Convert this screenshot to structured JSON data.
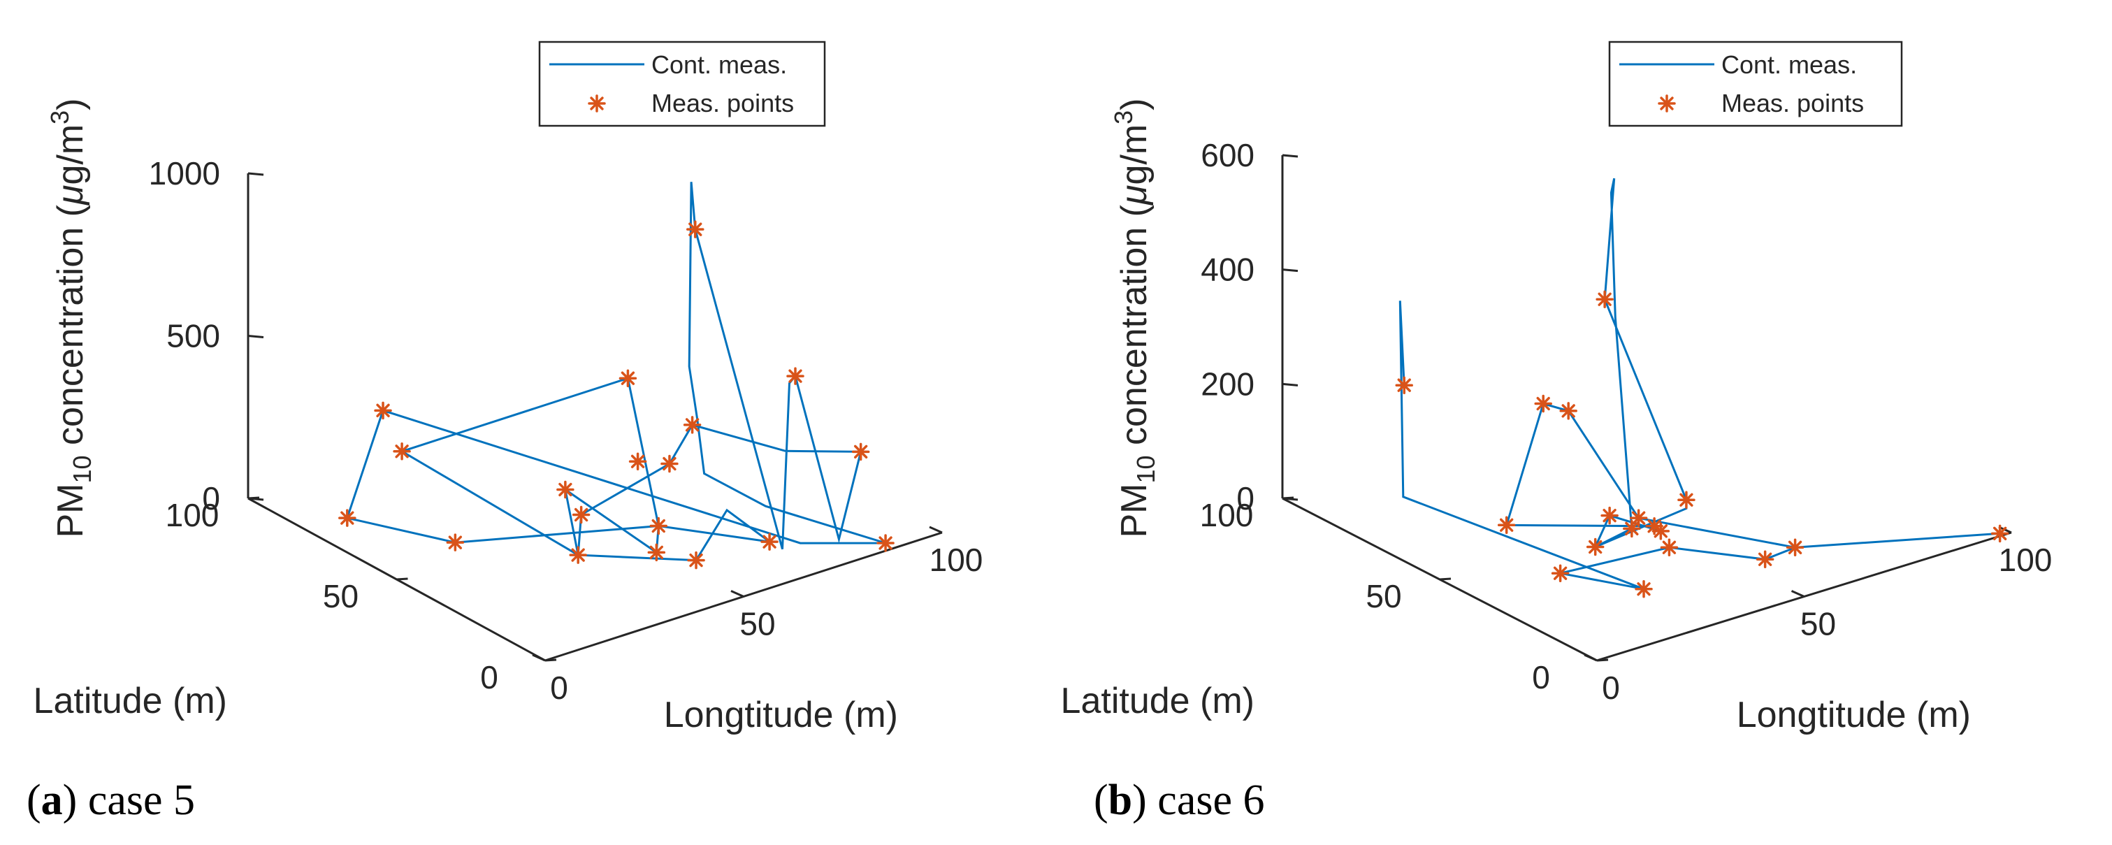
{
  "chart_data": [
    {
      "type": "line3d",
      "panel_label": "a",
      "caption": "case 5",
      "xlabel": "Longtitude (m)",
      "ylabel": "Latitude (m)",
      "zlabel_main": "PM",
      "zlabel_sub": "10",
      "zlabel_rest": " concentration (",
      "zlabel_mu": "μ",
      "zlabel_unit": "g/m",
      "zlabel_sup": "3",
      "zlabel_close": ")",
      "xlim": [
        0,
        100
      ],
      "ylim": [
        0,
        100
      ],
      "zlim": [
        0,
        1000
      ],
      "x_ticks": [
        "0",
        "50",
        "100"
      ],
      "y_ticks": [
        "0",
        "50",
        "100"
      ],
      "z_ticks": [
        "0",
        "500",
        "1000"
      ],
      "legend": {
        "line": "Cont. meas.",
        "points": "Meas. points",
        "position": "top"
      },
      "colors": {
        "line": "#0072bd",
        "points": "#d95319"
      },
      "series": [
        {
          "name": "Meas. points",
          "points": [
            [
              28,
              92,
              200
            ],
            [
              38,
              99,
              0
            ],
            [
              10,
              80,
              0
            ],
            [
              20,
              57,
              0
            ],
            [
              57,
              38,
              0
            ],
            [
              70,
              18,
              0
            ],
            [
              88,
              3,
              0
            ],
            [
              48,
              52,
              0
            ],
            [
              62,
              55,
              350
            ],
            [
              70,
              44,
              230
            ],
            [
              65,
              45,
              125
            ],
            [
              63,
              53,
              100
            ],
            [
              49,
              28,
              0
            ],
            [
              41,
              48,
              125
            ],
            [
              33,
              33,
              30
            ],
            [
              53,
              20,
              0
            ],
            [
              64,
              35,
              900
            ],
            [
              75,
              16,
              500
            ],
            [
              87,
              10,
              250
            ]
          ]
        },
        {
          "name": "Cont. meas.",
          "points": [
            [
              10,
              80,
              0
            ],
            [
              20,
              57,
              0
            ],
            [
              57,
              38,
              0
            ],
            [
              70,
              18,
              0
            ],
            [
              63,
              23,
              100
            ],
            [
              53,
              20,
              0
            ],
            [
              33,
              33,
              30
            ],
            [
              41,
              48,
              125
            ],
            [
              49,
              28,
              0
            ],
            [
              57,
              38,
              0
            ],
            [
              62,
              55,
              350
            ],
            [
              38,
              99,
              0
            ],
            [
              33,
              33,
              30
            ],
            [
              48,
              52,
              0
            ],
            [
              65,
              45,
              125
            ],
            [
              70,
              44,
              230
            ],
            [
              80,
              26,
              200
            ],
            [
              87,
              10,
              250
            ],
            [
              77,
              4,
              50
            ],
            [
              75,
              16,
              500
            ],
            [
              72,
              14,
              500
            ],
            [
              68,
              11,
              20
            ],
            [
              64,
              35,
              900
            ],
            [
              63,
              35,
              1050
            ],
            [
              61,
              33,
              500
            ],
            [
              66,
              37,
              300
            ],
            [
              70,
              40,
              100
            ],
            [
              75,
              26,
              50
            ],
            [
              88,
              3,
              0
            ],
            [
              74,
              13,
              5
            ],
            [
              28,
              92,
              200
            ],
            [
              10,
              80,
              0
            ]
          ]
        }
      ]
    },
    {
      "type": "line3d",
      "panel_label": "b",
      "caption": "case 6",
      "xlabel": "Longtitude (m)",
      "ylabel": "Latitude (m)",
      "zlabel_main": "PM",
      "zlabel_sub": "10",
      "zlabel_rest": " concentration (",
      "zlabel_mu": "μ",
      "zlabel_unit": "g/m",
      "zlabel_sup": "3",
      "zlabel_close": ")",
      "xlim": [
        0,
        100
      ],
      "ylim": [
        0,
        100
      ],
      "zlim": [
        0,
        600
      ],
      "x_ticks": [
        "0",
        "50",
        "100"
      ],
      "y_ticks": [
        "0",
        "50",
        "100"
      ],
      "z_ticks": [
        "0",
        "200",
        "400",
        "600"
      ],
      "legend": {
        "line": "Cont. meas.",
        "points": "Meas. points",
        "position": "top"
      },
      "colors": {
        "line": "#0072bd",
        "points": "#d95319"
      },
      "series": [
        {
          "name": "Meas. points",
          "points": [
            [
              18,
              85,
              200
            ],
            [
              47,
              79,
              120
            ],
            [
              47,
              71,
              130
            ],
            [
              28,
              22,
              0
            ],
            [
              20,
              38,
              0
            ],
            [
              44,
              35,
              0
            ],
            [
              55,
              19,
              0
            ],
            [
              26,
              63,
              0
            ],
            [
              48,
              45,
              0
            ],
            [
              45,
              39,
              15
            ],
            [
              41,
              50,
              20
            ],
            [
              33,
              44,
              0
            ],
            [
              48,
              50,
              0
            ],
            [
              63,
              20,
              0
            ],
            [
              38,
              39,
              35
            ],
            [
              55,
              70,
              310
            ],
            [
              58,
              48,
              15
            ],
            [
              98,
              1,
              0
            ]
          ]
        },
        {
          "name": "Cont. meas.",
          "points": [
            [
              18,
              85,
              200
            ],
            [
              17,
              85,
              350
            ],
            [
              17,
              84,
              10
            ],
            [
              28,
              22,
              0
            ],
            [
              20,
              38,
              0
            ],
            [
              44,
              35,
              0
            ],
            [
              55,
              19,
              0
            ],
            [
              63,
              20,
              0
            ],
            [
              98,
              1,
              0
            ],
            [
              63,
              20,
              0
            ],
            [
              48,
              50,
              0
            ],
            [
              47,
              71,
              130
            ],
            [
              47,
              79,
              120
            ],
            [
              26,
              63,
              0
            ],
            [
              48,
              45,
              0
            ],
            [
              45,
              39,
              15
            ],
            [
              41,
              50,
              20
            ],
            [
              33,
              44,
              0
            ],
            [
              38,
              39,
              35
            ],
            [
              53,
              64,
              300
            ],
            [
              52,
              64,
              520
            ],
            [
              55,
              67,
              530
            ],
            [
              55,
              70,
              310
            ],
            [
              58,
              48,
              15
            ],
            [
              58,
              48,
              0
            ],
            [
              33,
              44,
              0
            ]
          ]
        }
      ]
    }
  ]
}
